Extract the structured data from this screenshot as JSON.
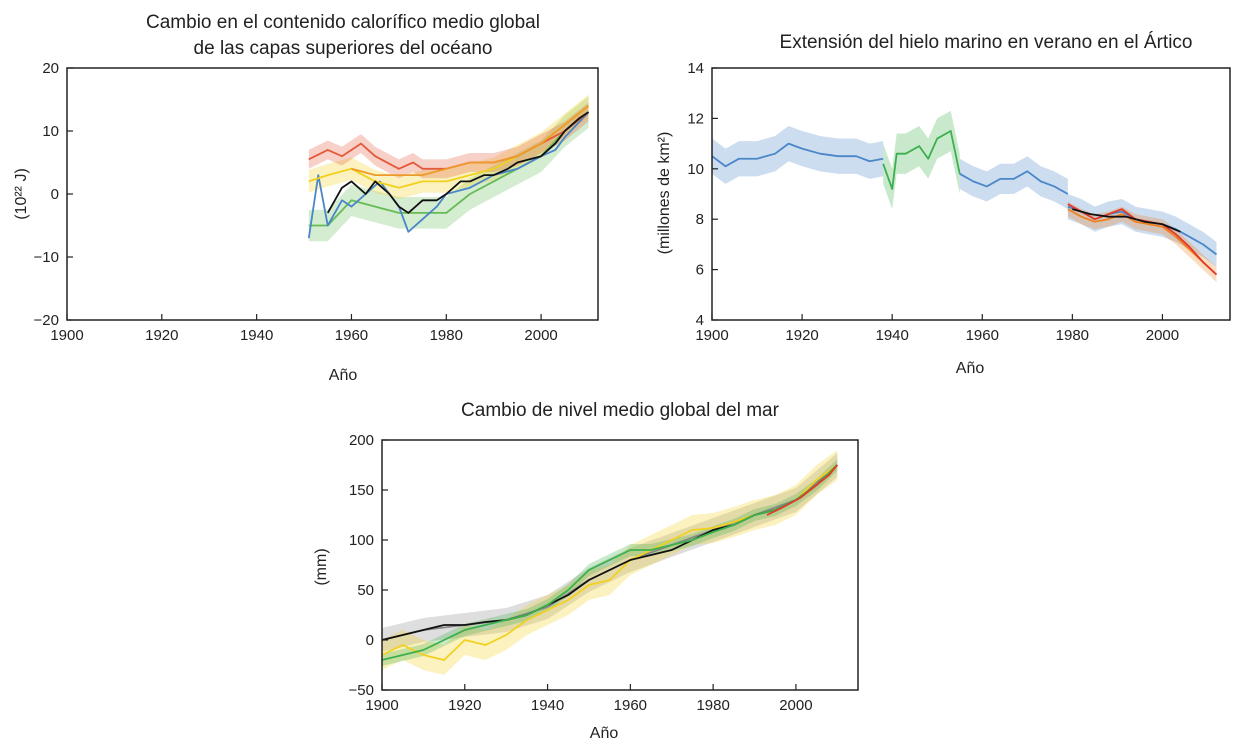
{
  "chart_data": [
    {
      "type": "line",
      "title": [
        "Cambio en el contenido calorífico medio global",
        "de las capas superiores del océano"
      ],
      "xlabel": "Año",
      "ylabel": "(10²² J)",
      "xlim": [
        1900,
        2012
      ],
      "ylim": [
        -20,
        20
      ],
      "xticks": [
        1900,
        1920,
        1940,
        1960,
        1980,
        2000
      ],
      "yticks": [
        -20,
        -10,
        0,
        10,
        20
      ],
      "grid": false,
      "series": [
        {
          "color": "#66bb55",
          "band": 2.5,
          "x": [
            1951,
            1955,
            1960,
            1965,
            1970,
            1975,
            1980,
            1985,
            1990,
            1995,
            2000,
            2005,
            2010
          ],
          "y": [
            -5,
            -5,
            -1,
            -2,
            -3,
            -3,
            -3,
            0,
            2,
            4,
            6,
            10,
            13
          ]
        },
        {
          "color": "#4a86c8",
          "x": [
            1951,
            1953,
            1955,
            1958,
            1960,
            1963,
            1966,
            1970,
            1972,
            1975,
            1978,
            1980,
            1985,
            1990,
            1995,
            2000,
            2003,
            2005,
            2010
          ],
          "y": [
            -7,
            3,
            -5,
            -1,
            -2,
            0,
            2,
            -2,
            -6,
            -4,
            -2,
            0,
            1,
            3,
            4,
            6,
            7,
            9,
            13
          ]
        },
        {
          "color": "#f2d11e",
          "band": 1.8,
          "x": [
            1951,
            1955,
            1960,
            1965,
            1970,
            1975,
            1980,
            1985,
            1990,
            1995,
            2000,
            2005,
            2010
          ],
          "y": [
            2,
            3,
            4,
            2,
            1,
            2,
            2,
            3,
            4,
            6,
            8,
            11,
            14
          ]
        },
        {
          "color": "#e35a3a",
          "band": 1.5,
          "x": [
            1951,
            1955,
            1958,
            1962,
            1965,
            1970,
            1973,
            1975,
            1980,
            1985,
            1990,
            1995,
            2000,
            2005,
            2010
          ],
          "y": [
            5.5,
            7,
            6,
            8,
            6,
            4,
            5,
            4,
            4,
            5,
            5,
            6,
            8,
            10,
            13
          ]
        },
        {
          "color": "#ee9a2a",
          "x": [
            1960,
            1965,
            1970,
            1975,
            1980,
            1985,
            1990,
            1995,
            2000,
            2005,
            2010
          ],
          "y": [
            4,
            3,
            3,
            3,
            4,
            5,
            5,
            6,
            8,
            11,
            14
          ]
        },
        {
          "color": "#111111",
          "x": [
            1955,
            1958,
            1960,
            1963,
            1965,
            1968,
            1970,
            1972,
            1975,
            1978,
            1980,
            1983,
            1985,
            1988,
            1990,
            1993,
            1995,
            2000,
            2003,
            2005,
            2008,
            2010
          ],
          "y": [
            -3,
            1,
            2,
            0,
            2,
            0,
            -2,
            -3,
            -1,
            -1,
            0,
            2,
            2,
            3,
            3,
            4,
            5,
            6,
            8,
            10,
            12,
            13
          ]
        }
      ]
    },
    {
      "type": "line",
      "title": "Extensión del hielo marino en verano en el Ártico",
      "xlabel": "Año",
      "ylabel": "(millones de km²)",
      "xlim": [
        1900,
        2015
      ],
      "ylim": [
        4,
        14
      ],
      "xticks": [
        1900,
        1920,
        1940,
        1960,
        1980,
        2000
      ],
      "yticks": [
        4,
        6,
        8,
        10,
        12,
        14
      ],
      "grid": false,
      "series": [
        {
          "color": "#4a86c8",
          "band": 0.7,
          "x": [
            1900,
            1903,
            1906,
            1910,
            1914,
            1917,
            1920,
            1924,
            1928,
            1932,
            1935,
            1938
          ],
          "y": [
            10.5,
            10.1,
            10.4,
            10.4,
            10.6,
            11.0,
            10.8,
            10.6,
            10.5,
            10.5,
            10.3,
            10.4
          ]
        },
        {
          "color": "#3cb04c",
          "band": 0.8,
          "x": [
            1938,
            1940,
            1941,
            1943,
            1946,
            1948,
            1950,
            1953,
            1955
          ],
          "y": [
            10.2,
            9.2,
            10.6,
            10.6,
            10.9,
            10.4,
            11.2,
            11.5,
            9.8
          ]
        },
        {
          "color": "#4a86c8",
          "band": 0.6,
          "x": [
            1955,
            1958,
            1961,
            1964,
            1967,
            1970,
            1973,
            1976,
            1979
          ],
          "y": [
            9.8,
            9.5,
            9.3,
            9.6,
            9.6,
            9.9,
            9.5,
            9.3,
            9.0
          ]
        },
        {
          "color": "#4a86c8",
          "band": 0.5,
          "x": [
            1979,
            1982,
            1985,
            1988,
            1991,
            1994,
            1997,
            2000,
            2003,
            2006,
            2009,
            2012
          ],
          "y": [
            8.5,
            8.3,
            8.0,
            8.2,
            8.3,
            8.0,
            7.9,
            7.8,
            7.6,
            7.3,
            7.0,
            6.6
          ]
        },
        {
          "color": "#ee8020",
          "band": 0.3,
          "x": [
            1979,
            1982,
            1985,
            1988,
            1991,
            1994,
            1997,
            2000,
            2003,
            2006,
            2009,
            2012
          ],
          "y": [
            8.4,
            8.1,
            7.9,
            8.0,
            8.2,
            7.9,
            7.8,
            7.7,
            7.3,
            6.8,
            6.3,
            5.8
          ]
        },
        {
          "color": "#e33a2a",
          "x": [
            1979,
            1982,
            1985,
            1988,
            1991,
            1994,
            1997,
            2000,
            2003,
            2006,
            2009,
            2012
          ],
          "y": [
            8.6,
            8.3,
            8.0,
            8.2,
            8.4,
            8.0,
            7.9,
            7.8,
            7.4,
            6.9,
            6.3,
            5.8
          ]
        },
        {
          "color": "#111111",
          "x": [
            1980,
            1984,
            1988,
            1992,
            1996,
            2000,
            2004
          ],
          "y": [
            8.4,
            8.2,
            8.1,
            8.1,
            7.9,
            7.8,
            7.5
          ]
        }
      ]
    },
    {
      "type": "line",
      "title": "Cambio de nivel medio global del mar",
      "xlabel": "Año",
      "ylabel": "(mm)",
      "xlim": [
        1900,
        2015
      ],
      "ylim": [
        -50,
        200
      ],
      "xticks": [
        1900,
        1920,
        1940,
        1960,
        1980,
        2000
      ],
      "yticks": [
        -50,
        0,
        50,
        100,
        150,
        200
      ],
      "grid": false,
      "series": [
        {
          "color": "#888888",
          "band": 12,
          "x": [
            1900,
            1910,
            1920,
            1930,
            1940,
            1950,
            1960,
            1970,
            1980,
            1990,
            2000,
            2010
          ],
          "y": [
            0,
            10,
            15,
            20,
            33,
            60,
            80,
            95,
            110,
            125,
            140,
            175
          ]
        },
        {
          "color": "#f2d11e",
          "band": 15,
          "x": [
            1900,
            1905,
            1910,
            1915,
            1920,
            1925,
            1930,
            1935,
            1940,
            1945,
            1950,
            1955,
            1960,
            1965,
            1970,
            1975,
            1980,
            1985,
            1990,
            1995,
            2000,
            2005,
            2010
          ],
          "y": [
            -15,
            -5,
            -15,
            -20,
            0,
            -5,
            5,
            20,
            30,
            40,
            55,
            60,
            80,
            90,
            100,
            110,
            112,
            118,
            125,
            130,
            140,
            160,
            175
          ]
        },
        {
          "color": "#111111",
          "x": [
            1900,
            1905,
            1910,
            1915,
            1920,
            1925,
            1930,
            1935,
            1940,
            1945,
            1950,
            1955,
            1960,
            1965,
            1970,
            1975,
            1980,
            1985,
            1990,
            1995,
            2000,
            2005,
            2010
          ],
          "y": [
            0,
            5,
            10,
            15,
            15,
            18,
            20,
            25,
            35,
            45,
            60,
            70,
            80,
            85,
            90,
            100,
            110,
            115,
            125,
            130,
            140,
            155,
            175
          ]
        },
        {
          "color": "#3cb04c",
          "band": 6,
          "x": [
            1900,
            1905,
            1910,
            1915,
            1920,
            1925,
            1930,
            1935,
            1940,
            1945,
            1950,
            1955,
            1960,
            1965,
            1970,
            1975,
            1980,
            1985,
            1990,
            1995,
            2000,
            2005,
            2010
          ],
          "y": [
            -20,
            -15,
            -10,
            0,
            10,
            15,
            20,
            25,
            35,
            50,
            70,
            80,
            90,
            90,
            95,
            100,
            108,
            115,
            125,
            130,
            140,
            155,
            175
          ]
        },
        {
          "color": "#e33a2a",
          "x": [
            1993,
            1997,
            2001,
            2005,
            2008,
            2010
          ],
          "y": [
            125,
            133,
            142,
            155,
            165,
            175
          ]
        }
      ]
    }
  ]
}
